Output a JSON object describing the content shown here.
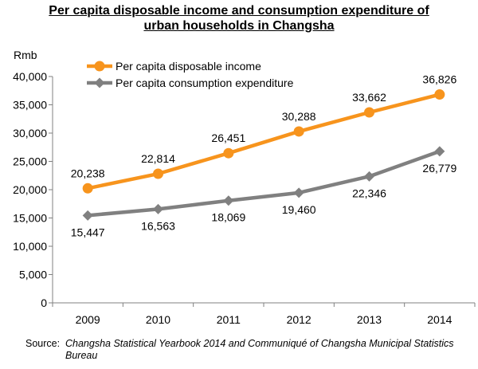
{
  "title_lines": [
    "Per capita disposable income and consumption expenditure of",
    "urban households in Changsha"
  ],
  "source": {
    "label": "Source:",
    "text": "Changsha Statistical Yearbook 2014 and Communiqué of Changsha Municipal Statistics Bureau"
  },
  "chart_data": {
    "type": "line",
    "title": "Per capita disposable income and consumption expenditure of urban households in Changsha",
    "ylabel": "Rmb",
    "xlabel": "",
    "categories": [
      "2009",
      "2010",
      "2011",
      "2012",
      "2013",
      "2014"
    ],
    "ylim": [
      0,
      40000
    ],
    "yticks": [
      0,
      5000,
      10000,
      15000,
      20000,
      25000,
      30000,
      35000,
      40000
    ],
    "ytick_labels": [
      "0",
      "5,000",
      "10,000",
      "15,000",
      "20,000",
      "25,000",
      "30,000",
      "35,000",
      "40,000"
    ],
    "grid": false,
    "legend_position": "top-left",
    "series": [
      {
        "name": "Per capita disposable income",
        "color": "#f7941d",
        "marker": "circle",
        "values": [
          20238,
          22814,
          26451,
          30288,
          33662,
          36826
        ],
        "labels": [
          "20,238",
          "22,814",
          "26,451",
          "30,288",
          "33,662",
          "36,826"
        ],
        "label_position": "above"
      },
      {
        "name": "Per capita consumption expenditure",
        "color": "#808080",
        "marker": "diamond",
        "values": [
          15447,
          16563,
          18069,
          19460,
          22346,
          26779
        ],
        "labels": [
          "15,447",
          "16,563",
          "18,069",
          "19,460",
          "22,346",
          "26,779"
        ],
        "label_position": "below"
      }
    ]
  }
}
